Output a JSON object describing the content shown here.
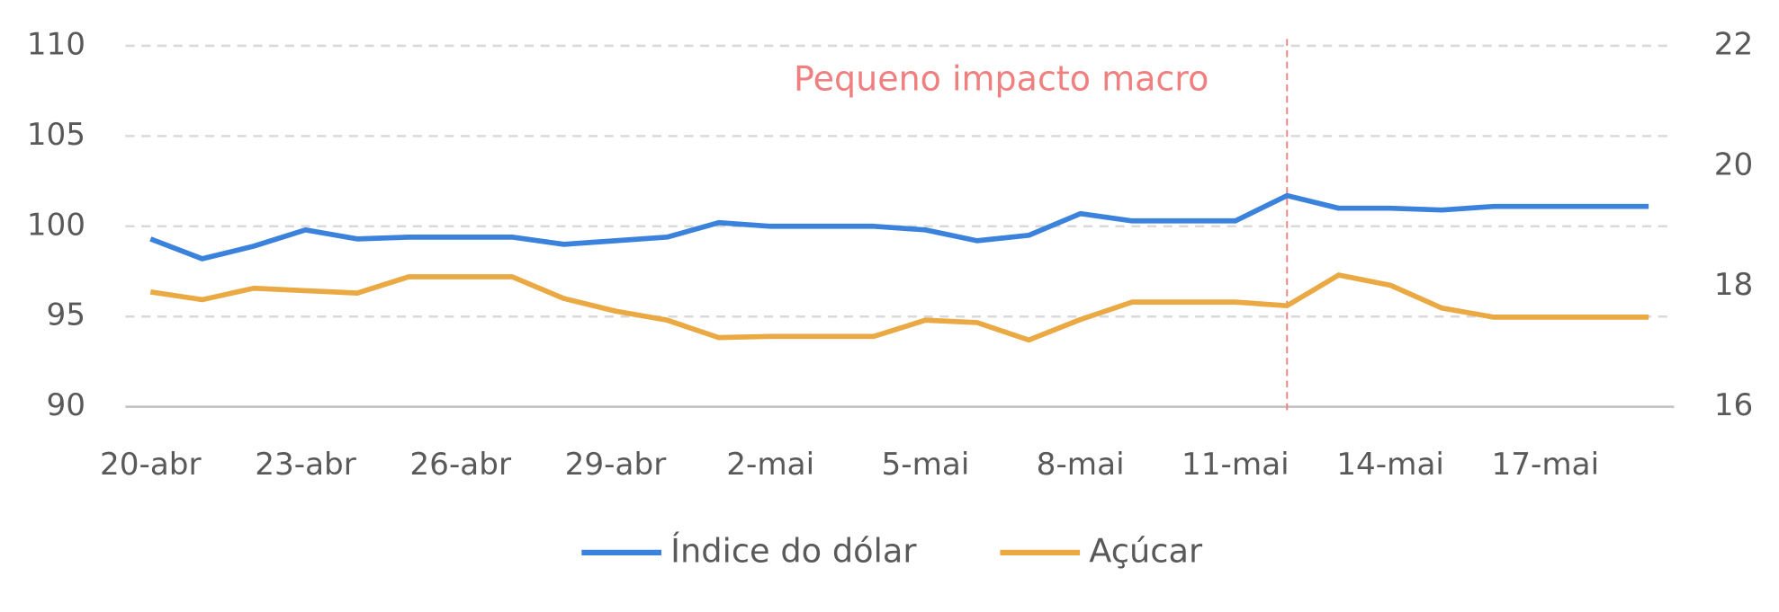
{
  "chart_data": {
    "type": "line",
    "categories": [
      "20-abr",
      null,
      null,
      "23-abr",
      null,
      null,
      "26-abr",
      null,
      null,
      "29-abr",
      null,
      null,
      "2-mai",
      null,
      null,
      "5-mai",
      null,
      null,
      "8-mai",
      null,
      null,
      "11-mai",
      null,
      null,
      "14-mai",
      null,
      null,
      "17-mai",
      null,
      null
    ],
    "series": [
      {
        "name": "Índice do dólar",
        "color": "#3b82dc",
        "values": [
          99.3,
          98.2,
          98.9,
          99.8,
          99.3,
          99.4,
          99.4,
          99.4,
          99.0,
          99.2,
          99.4,
          100.2,
          100.0,
          100.0,
          100.0,
          99.8,
          99.2,
          99.5,
          100.7,
          100.3,
          100.3,
          100.3,
          101.7,
          101.0,
          101.0,
          100.9,
          101.1,
          101.1,
          101.1,
          101.1
        ]
      },
      {
        "name": "Açúcar",
        "color": "#eaa942",
        "axis": "y2",
        "values": [
          17.91,
          17.78,
          17.97,
          17.93,
          17.89,
          18.16,
          18.16,
          18.16,
          17.8,
          17.59,
          17.44,
          17.15,
          17.17,
          17.17,
          17.17,
          17.44,
          17.4,
          17.11,
          17.45,
          17.74,
          17.74,
          17.74,
          17.68,
          18.19,
          18.02,
          17.64,
          17.49,
          17.49,
          17.49,
          17.49
        ]
      }
    ],
    "ylim": [
      90,
      110
    ],
    "yticks": [
      90,
      95,
      100,
      105,
      110
    ],
    "y2lim": [
      16,
      22
    ],
    "y2ticks": [
      16,
      18,
      20,
      22
    ],
    "grid": true,
    "legend": "bottom",
    "annotation": {
      "text": "Pequeno impacto macro",
      "color": "#f08080"
    }
  }
}
